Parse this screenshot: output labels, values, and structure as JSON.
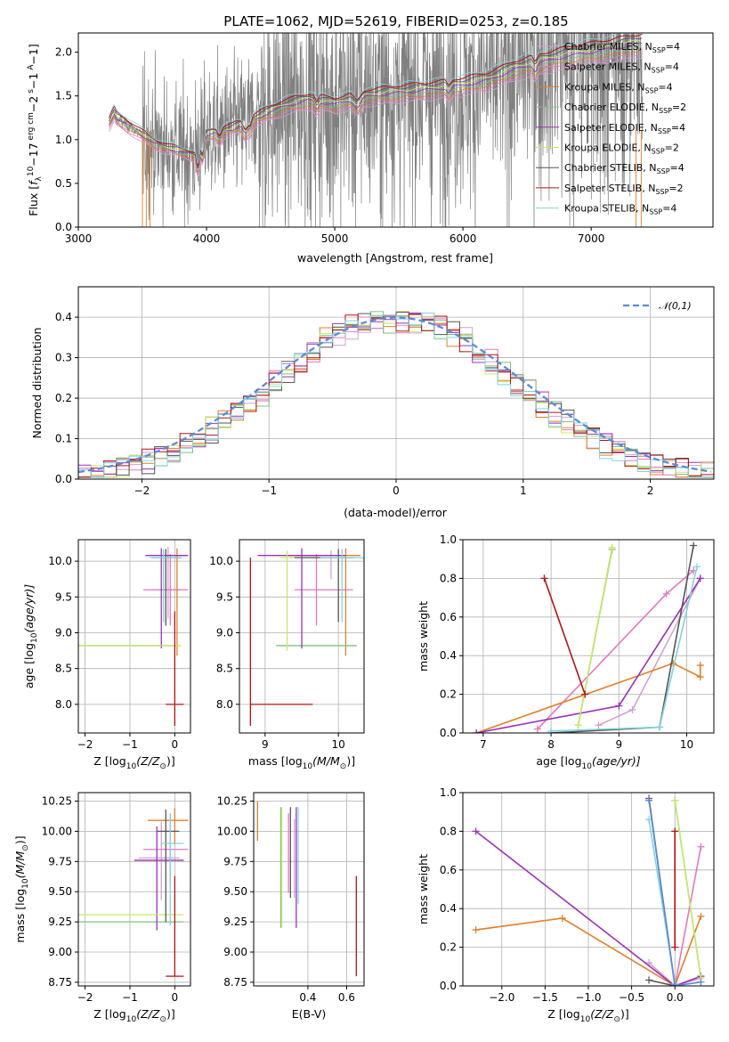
{
  "figure": {
    "title": "PLATE=1062, MJD=52619, FIBERID=0253, z=0.185"
  },
  "colors": {
    "data": "#808080",
    "Chabrier MILES": "#d4a0d0",
    "Salpeter MILES": "#e377c2",
    "Kroupa MILES": "#e07f2a",
    "Chabrier ELODIE": "#7fbf7f",
    "Salpeter ELODIE": "#9b30b8",
    "Kroupa ELODIE": "#c8e86a",
    "Chabrier STELIB": "#555555",
    "Salpeter STELIB": "#b01515",
    "Kroupa STELIB": "#7fd4e0",
    "gauss": "#5b8ad8"
  },
  "chart_data": [
    {
      "id": "spectrum",
      "type": "line",
      "title": "PLATE=1062, MJD=52619, FIBERID=0253, z=0.185",
      "xlabel": "wavelength [Angstrom, rest frame]",
      "ylabel_parts": [
        "Flux [",
        "f",
        "λ",
        "10",
        "−17",
        " erg cm",
        "−2",
        " s",
        "−1",
        " A",
        "−1",
        "]"
      ],
      "xlim": [
        3000,
        7950
      ],
      "ylim": [
        0,
        2.22
      ],
      "xticks": [
        3000,
        4000,
        5000,
        6000,
        7000
      ],
      "yticks": [
        0.0,
        0.5,
        1.0,
        1.5,
        2.0
      ],
      "data_range": [
        3240,
        7400
      ],
      "model_knots": {
        "x": [
          3240,
          3280,
          3300,
          3400,
          3500,
          3600,
          3700,
          3800,
          3900,
          4000,
          4200,
          4400,
          4600,
          4800,
          5000,
          5200,
          5400,
          5600,
          5800,
          6000,
          6200,
          6400,
          6600,
          6800,
          7000,
          7200,
          7400
        ],
        "y": [
          1.18,
          1.3,
          1.24,
          1.15,
          1.05,
          0.95,
          0.9,
          0.86,
          0.82,
          1.05,
          1.12,
          1.25,
          1.38,
          1.45,
          1.4,
          1.48,
          1.52,
          1.55,
          1.58,
          1.62,
          1.68,
          1.8,
          1.88,
          1.95,
          2.0,
          2.05,
          2.1
        ]
      },
      "legend": [
        {
          "name": "Chabrier MILES",
          "nssp": "4"
        },
        {
          "name": "Salpeter MILES",
          "nssp": "4"
        },
        {
          "name": "Kroupa MILES",
          "nssp": "4"
        },
        {
          "name": "Chabrier ELODIE",
          "nssp": "2"
        },
        {
          "name": "Salpeter ELODIE",
          "nssp": "4"
        },
        {
          "name": "Kroupa ELODIE",
          "nssp": "2"
        },
        {
          "name": "Chabrier STELIB",
          "nssp": "4"
        },
        {
          "name": "Salpeter STELIB",
          "nssp": "2"
        },
        {
          "name": "Kroupa STELIB",
          "nssp": "4"
        }
      ],
      "legend_placement": "upper-right",
      "grid": false
    },
    {
      "id": "residuals",
      "type": "line",
      "xlabel": "(data-model)/error",
      "ylabel": "Normed distribution",
      "xlim": [
        -2.5,
        2.5
      ],
      "ylim": [
        0,
        0.475
      ],
      "xticks": [
        -2,
        -1,
        0,
        1,
        2
      ],
      "yticks": [
        0.0,
        0.1,
        0.2,
        0.3,
        0.4
      ],
      "grid": true,
      "legend": [
        {
          "name": "𝒩(0,1)"
        }
      ],
      "legend_placement": "upper-right",
      "bin_width": 0.1
    },
    {
      "id": "age-vs-Z",
      "type": "scatter",
      "xlabel_parts": [
        "Z [log",
        "10",
        "(Z/Z",
        "⊙",
        ")]"
      ],
      "ylabel_parts": [
        "age  [log",
        "10",
        "(age/yr)]"
      ],
      "xlim": [
        -2.15,
        0.35
      ],
      "ylim": [
        7.6,
        10.3
      ],
      "xticks": [
        -2,
        -1,
        0
      ],
      "yticks": [
        8.0,
        8.5,
        9.0,
        9.5,
        10.0
      ],
      "grid": true,
      "points": [
        {
          "m": "Chabrier MILES",
          "x": -0.15,
          "y": 9.6,
          "xe": [
            0.35,
            0.3
          ],
          "ye": [
            0.4,
            0.6
          ]
        },
        {
          "m": "Salpeter MILES",
          "x": -0.1,
          "y": 9.6,
          "xe": [
            0.6,
            0.4
          ],
          "ye": [
            0.5,
            0.5
          ]
        },
        {
          "m": "Kroupa MILES",
          "x": 0.05,
          "y": 10.08,
          "xe": [
            0.3,
            0.2
          ],
          "ye": [
            1.4,
            0.1
          ]
        },
        {
          "m": "Chabrier ELODIE",
          "x": -1.0,
          "y": 8.82,
          "xe": [
            1.2,
            1.1
          ],
          "ye": [
            0.0,
            0.0
          ]
        },
        {
          "m": "Salpeter ELODIE",
          "x": -0.3,
          "y": 10.08,
          "xe": [
            0.35,
            0.6
          ],
          "ye": [
            1.3,
            0.1
          ]
        },
        {
          "m": "Kroupa ELODIE",
          "x": -1.0,
          "y": 8.82,
          "xe": [
            1.2,
            1.15
          ],
          "ye": [
            0.0,
            0.0
          ]
        },
        {
          "m": "Chabrier STELIB",
          "x": -0.2,
          "y": 10.05,
          "xe": [
            0.3,
            0.35
          ],
          "ye": [
            0.95,
            0.12
          ]
        },
        {
          "m": "Salpeter STELIB",
          "x": 0.0,
          "y": 8.0,
          "xe": [
            0.2,
            0.2
          ],
          "ye": [
            0.3,
            1.3
          ]
        },
        {
          "m": "Kroupa STELIB",
          "x": -0.25,
          "y": 10.05,
          "xe": [
            0.3,
            0.4
          ],
          "ye": [
            0.9,
            0.12
          ]
        }
      ]
    },
    {
      "id": "age-vs-mass",
      "type": "scatter",
      "xlabel_parts": [
        "mass [log",
        "10",
        "(M/M",
        "⊙",
        ")]"
      ],
      "xlim": [
        8.65,
        10.35
      ],
      "ylim": [
        7.6,
        10.3
      ],
      "xticks": [
        9,
        10
      ],
      "yticks": [
        8.0,
        8.5,
        9.0,
        9.5,
        10.0
      ],
      "grid": true,
      "points": [
        {
          "m": "Chabrier MILES",
          "x": 9.9,
          "y": 10.05,
          "xe": [
            0.3,
            0.3
          ],
          "ye": [
            0.3,
            0.1
          ]
        },
        {
          "m": "Salpeter MILES",
          "x": 9.7,
          "y": 9.6,
          "xe": [
            0.3,
            0.5
          ],
          "ye": [
            0.5,
            0.5
          ]
        },
        {
          "m": "Kroupa MILES",
          "x": 10.1,
          "y": 10.08,
          "xe": [
            0.8,
            0.2
          ],
          "ye": [
            1.4,
            0.1
          ]
        },
        {
          "m": "Chabrier ELODIE",
          "x": 9.55,
          "y": 8.82,
          "xe": [
            0.4,
            0.7
          ],
          "ye": [
            0.0,
            0.0
          ]
        },
        {
          "m": "Salpeter ELODIE",
          "x": 9.5,
          "y": 10.08,
          "xe": [
            0.6,
            0.6
          ],
          "ye": [
            1.3,
            0.1
          ]
        },
        {
          "m": "Kroupa ELODIE",
          "x": 9.3,
          "y": 10.05,
          "xe": [
            0.1,
            0.8
          ],
          "ye": [
            1.3,
            0.1
          ]
        },
        {
          "m": "Chabrier STELIB",
          "x": 10.0,
          "y": 10.05,
          "xe": [
            0.6,
            0.2
          ],
          "ye": [
            0.9,
            0.12
          ]
        },
        {
          "m": "Salpeter STELIB",
          "x": 8.8,
          "y": 8.0,
          "xe": [
            0.0,
            0.85
          ],
          "ye": [
            0.3,
            2.05
          ]
        },
        {
          "m": "Kroupa STELIB",
          "x": 10.05,
          "y": 10.05,
          "xe": [
            0.3,
            0.3
          ],
          "ye": [
            0.9,
            0.12
          ]
        }
      ]
    },
    {
      "id": "weight-vs-age",
      "type": "line",
      "xlabel_parts": [
        "age  [log",
        "10",
        "(age/yr)]"
      ],
      "ylabel": "mass weight",
      "xlim": [
        6.7,
        10.4
      ],
      "ylim": [
        0,
        1.0
      ],
      "xticks": [
        7,
        8,
        9,
        10
      ],
      "yticks": [
        0.0,
        0.2,
        0.4,
        0.6,
        0.8,
        1.0
      ],
      "grid": true,
      "series": [
        {
          "m": "Chabrier MILES",
          "x": [
            8.7,
            9.2,
            10.2
          ],
          "y": [
            0.04,
            0.12,
            0.8
          ]
        },
        {
          "m": "Salpeter MILES",
          "x": [
            7.8,
            9.7,
            10.1
          ],
          "y": [
            0.02,
            0.72,
            0.84
          ]
        },
        {
          "m": "Kroupa MILES",
          "x": [
            6.9,
            9.8,
            10.2,
            10.2
          ],
          "y": [
            0.0,
            0.36,
            0.29,
            0.35
          ]
        },
        {
          "m": "Chabrier ELODIE",
          "x": [
            8.9,
            8.4
          ],
          "y": [
            0.95,
            0.04
          ]
        },
        {
          "m": "Salpeter ELODIE",
          "x": [
            6.9,
            9.0,
            10.2
          ],
          "y": [
            0.0,
            0.14,
            0.8
          ]
        },
        {
          "m": "Kroupa ELODIE",
          "x": [
            8.4,
            8.9
          ],
          "y": [
            0.04,
            0.96
          ]
        },
        {
          "m": "Chabrier STELIB",
          "x": [
            8.0,
            9.6,
            10.1
          ],
          "y": [
            0.0,
            0.03,
            0.97
          ]
        },
        {
          "m": "Salpeter STELIB",
          "x": [
            7.9,
            8.5
          ],
          "y": [
            0.8,
            0.2
          ]
        },
        {
          "m": "Kroupa STELIB",
          "x": [
            8.0,
            9.6,
            10.15
          ],
          "y": [
            0.01,
            0.03,
            0.86
          ]
        }
      ]
    },
    {
      "id": "mass-vs-Z",
      "type": "scatter",
      "xlabel_parts": [
        "Z [log",
        "10",
        "(Z/Z",
        "⊙",
        ")]"
      ],
      "ylabel_parts": [
        "mass [log",
        "10",
        "(M/M",
        "⊙",
        ")]"
      ],
      "xlim": [
        -2.15,
        0.35
      ],
      "ylim": [
        8.72,
        10.32
      ],
      "xticks": [
        -2,
        -1,
        0
      ],
      "yticks": [
        8.75,
        9.0,
        9.25,
        9.5,
        9.75,
        10.0,
        10.25
      ],
      "grid": true,
      "points": [
        {
          "m": "Chabrier MILES",
          "x": -0.3,
          "y": 9.78,
          "xe": [
            0.5,
            0.4
          ],
          "ye": [
            0.35,
            0.3
          ]
        },
        {
          "m": "Salpeter MILES",
          "x": -0.1,
          "y": 9.85,
          "xe": [
            0.6,
            0.4
          ],
          "ye": [
            0.3,
            0.3
          ]
        },
        {
          "m": "Kroupa MILES",
          "x": 0.0,
          "y": 10.09,
          "xe": [
            0.6,
            0.3
          ],
          "ye": [
            0.2,
            0.1
          ]
        },
        {
          "m": "Chabrier ELODIE",
          "x": -1.0,
          "y": 9.25,
          "xe": [
            1.2,
            1.2
          ],
          "ye": [
            0.0,
            0.0
          ]
        },
        {
          "m": "Salpeter ELODIE",
          "x": -0.4,
          "y": 9.76,
          "xe": [
            0.5,
            0.6
          ],
          "ye": [
            0.58,
            0.28
          ]
        },
        {
          "m": "Kroupa ELODIE",
          "x": -1.0,
          "y": 9.31,
          "xe": [
            1.2,
            1.2
          ],
          "ye": [
            0.0,
            0.0
          ]
        },
        {
          "m": "Chabrier STELIB",
          "x": -0.2,
          "y": 10.0,
          "xe": [
            0.2,
            0.3
          ],
          "ye": [
            0.75,
            0.18
          ]
        },
        {
          "m": "Salpeter STELIB",
          "x": 0.0,
          "y": 8.8,
          "xe": [
            0.2,
            0.2
          ],
          "ye": [
            0.0,
            0.83
          ]
        },
        {
          "m": "Kroupa STELIB",
          "x": -0.1,
          "y": 9.9,
          "xe": [
            0.2,
            0.3
          ],
          "ye": [
            0.68,
            0.25
          ]
        }
      ]
    },
    {
      "id": "mass-vs-ebv",
      "type": "scatter",
      "xlabel": "E(B-V)",
      "xlim": [
        0.12,
        0.69
      ],
      "ylim": [
        8.72,
        10.32
      ],
      "xticks": [
        0.4,
        0.6
      ],
      "yticks": [
        8.75,
        9.0,
        9.25,
        9.5,
        9.75,
        10.0,
        10.25
      ],
      "grid": true,
      "points": [
        {
          "m": "Chabrier MILES",
          "x": 0.33,
          "y": 9.8,
          "xe": [
            0.0,
            0.0
          ],
          "ye": [
            0.35,
            0.3
          ]
        },
        {
          "m": "Salpeter MILES",
          "x": 0.3,
          "y": 9.85,
          "xe": [
            0.0,
            0.0
          ],
          "ye": [
            0.36,
            0.3
          ]
        },
        {
          "m": "Kroupa MILES",
          "x": 0.14,
          "y": 10.1,
          "xe": [
            0.0,
            0.0
          ],
          "ye": [
            0.18,
            0.15
          ]
        },
        {
          "m": "Chabrier ELODIE",
          "x": 0.26,
          "y": 9.7,
          "xe": [
            0.0,
            0.0
          ],
          "ye": [
            0.5,
            0.5
          ]
        },
        {
          "m": "Salpeter ELODIE",
          "x": 0.34,
          "y": 9.8,
          "xe": [
            0.0,
            0.0
          ],
          "ye": [
            0.6,
            0.4
          ]
        },
        {
          "m": "Kroupa ELODIE",
          "x": 0.265,
          "y": 9.7,
          "xe": [
            0.0,
            0.0
          ],
          "ye": [
            0.5,
            0.5
          ]
        },
        {
          "m": "Chabrier STELIB",
          "x": 0.31,
          "y": 9.95,
          "xe": [
            0.0,
            0.0
          ],
          "ye": [
            0.5,
            0.25
          ]
        },
        {
          "m": "Salpeter STELIB",
          "x": 0.65,
          "y": 9.2,
          "xe": [
            0.0,
            0.0
          ],
          "ye": [
            0.4,
            0.43
          ]
        },
        {
          "m": "Kroupa STELIB",
          "x": 0.35,
          "y": 9.9,
          "xe": [
            0.0,
            0.0
          ],
          "ye": [
            0.5,
            0.3
          ]
        }
      ]
    },
    {
      "id": "weight-vs-Z",
      "type": "line",
      "xlabel_parts": [
        "Z [log",
        "10",
        "(Z/Z",
        "⊙",
        ")]"
      ],
      "ylabel": "mass weight",
      "xlim": [
        -2.45,
        0.45
      ],
      "ylim": [
        0,
        1.0
      ],
      "xticks": [
        -2.0,
        -1.5,
        -1.0,
        -0.5,
        0.0
      ],
      "yticks": [
        0.0,
        0.2,
        0.4,
        0.6,
        0.8,
        1.0
      ],
      "grid": true,
      "series": [
        {
          "m": "Chabrier MILES",
          "x": [
            -0.3,
            0.0,
            0.3
          ],
          "y": [
            0.12,
            0.0,
            0.04
          ]
        },
        {
          "m": "Salpeter MILES",
          "x": [
            0.0,
            0.3
          ],
          "y": [
            0.0,
            0.72
          ]
        },
        {
          "m": "Kroupa MILES",
          "x": [
            -2.3,
            -1.3,
            0.0,
            0.3
          ],
          "y": [
            0.29,
            0.35,
            0.0,
            0.36
          ]
        },
        {
          "m": "Chabrier ELODIE",
          "x": [
            0.0,
            0.3
          ],
          "y": [
            0.96,
            0.04
          ]
        },
        {
          "m": "Salpeter ELODIE",
          "x": [
            -2.3,
            0.0,
            0.3
          ],
          "y": [
            0.8,
            0.0,
            0.05
          ]
        },
        {
          "m": "Kroupa ELODIE",
          "x": [
            0.0,
            0.3
          ],
          "y": [
            0.96,
            0.04
          ]
        },
        {
          "m": "Chabrier STELIB",
          "x": [
            -0.3,
            0.0,
            -0.3
          ],
          "y": [
            0.97,
            0.0,
            0.03
          ]
        },
        {
          "m": "Salpeter STELIB",
          "x": [
            0.0,
            0.0
          ],
          "y": [
            0.8,
            0.2
          ]
        },
        {
          "m": "Kroupa STELIB",
          "x": [
            -0.3,
            0.0
          ],
          "y": [
            0.86,
            0.01
          ]
        },
        {
          "m": "gauss",
          "x": [
            -0.3,
            0.0,
            0.3
          ],
          "y": [
            0.96,
            0.0,
            0.02
          ]
        }
      ]
    }
  ]
}
